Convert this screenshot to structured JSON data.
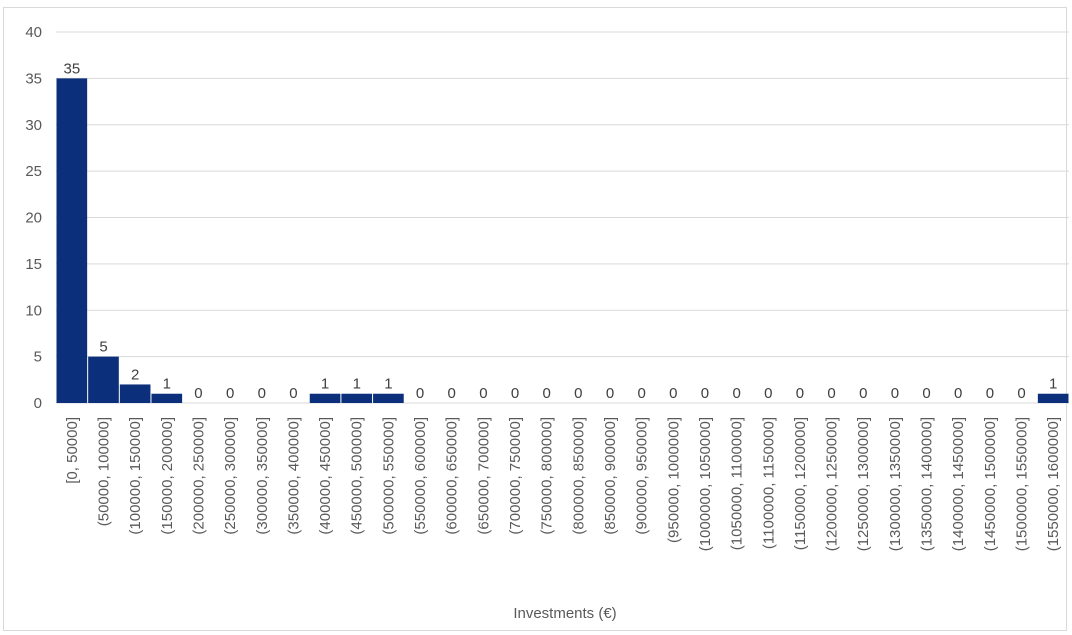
{
  "chart_data": {
    "type": "bar",
    "title": "",
    "xlabel": "Investments (€)",
    "ylabel": "",
    "ylim": [
      0,
      40
    ],
    "yticks": [
      0,
      5,
      10,
      15,
      20,
      25,
      30,
      35,
      40
    ],
    "grid": true,
    "legend": "none",
    "bar_color": "#0b2f7a",
    "categories": [
      "[0, 50000]",
      "(50000, 100000]",
      "(100000, 150000]",
      "(150000, 200000]",
      "(200000, 250000]",
      "(250000, 300000]",
      "(300000, 350000]",
      "(350000, 400000]",
      "(400000, 450000]",
      "(450000, 500000]",
      "(500000, 550000]",
      "(550000, 600000]",
      "(600000, 650000]",
      "(650000, 700000]",
      "(700000, 750000]",
      "(750000, 800000]",
      "(800000, 850000]",
      "(850000, 900000]",
      "(900000, 950000]",
      "(950000, 1000000]",
      "(1000000, 1050000]",
      "(1050000, 1100000]",
      "(1100000, 1150000]",
      "(1150000, 1200000]",
      "(1200000, 1250000]",
      "(1250000, 1300000]",
      "(1300000, 1350000]",
      "(1350000, 1400000]",
      "(1400000, 1450000]",
      "(1450000, 1500000]",
      "(1500000, 1550000]",
      "(1550000, 1600000]"
    ],
    "values": [
      35,
      5,
      2,
      1,
      0,
      0,
      0,
      0,
      1,
      1,
      1,
      0,
      0,
      0,
      0,
      0,
      0,
      0,
      0,
      0,
      0,
      0,
      0,
      0,
      0,
      0,
      0,
      0,
      0,
      0,
      0,
      1
    ]
  }
}
